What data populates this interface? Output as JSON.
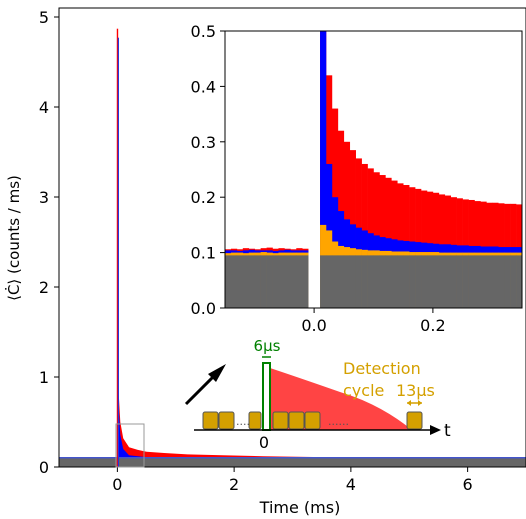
{
  "chart_data": [
    {
      "id": "main",
      "type": "area",
      "xlabel": "Time (ms)",
      "ylabel": "⟨Ċ⟩ (counts / ms)",
      "xlim": [
        -1.0,
        7.0
      ],
      "ylim": [
        0,
        5.1
      ],
      "xticks": [
        0,
        2,
        4,
        6
      ],
      "xtick_labels": [
        "0",
        "2",
        "4",
        "6"
      ],
      "yticks": [
        0,
        1,
        2,
        3,
        4,
        5
      ],
      "ytick_labels": [
        "0",
        "1",
        "2",
        "3",
        "4",
        "5"
      ],
      "background_level": 0.1,
      "spike": {
        "x": 0.0,
        "peak_red": 4.87,
        "peak_blue": 4.77
      },
      "decay_samples": {
        "x": [
          0.02,
          0.05,
          0.1,
          0.2,
          0.35,
          0.5,
          0.8,
          1.2,
          1.8,
          2.5,
          3.5,
          4.5,
          5.5,
          7.0
        ],
        "red": [
          0.85,
          0.5,
          0.32,
          0.22,
          0.19,
          0.17,
          0.155,
          0.14,
          0.13,
          0.12,
          0.11,
          0.105,
          0.1,
          0.1
        ],
        "blue": [
          0.7,
          0.36,
          0.2,
          0.13,
          0.12,
          0.11,
          0.11,
          0.105,
          0.1,
          0.1,
          0.1,
          0.1,
          0.1,
          0.1
        ]
      },
      "grid": false
    },
    {
      "id": "inset",
      "type": "bar",
      "xlim": [
        -0.15,
        0.35
      ],
      "ylim": [
        0,
        0.5
      ],
      "xticks": [
        0.0,
        0.2
      ],
      "xtick_labels": [
        "0.0",
        "0.2"
      ],
      "yticks": [
        0.0,
        0.1,
        0.2,
        0.3,
        0.4,
        0.5
      ],
      "ytick_labels": [
        "0.0",
        "0.1",
        "0.2",
        "0.3",
        "0.4",
        "0.5"
      ],
      "bin_width": 0.01,
      "bins_start": -0.15,
      "series": [
        {
          "color": "#666666",
          "values": [
            0.095,
            0.095,
            0.095,
            0.095,
            0.095,
            0.095,
            0.095,
            0.095,
            0.095,
            0.095,
            0.095,
            0.095,
            0.095,
            0.095,
            0.0,
            0.0,
            0.095,
            0.095,
            0.095,
            0.095,
            0.095,
            0.095,
            0.095,
            0.095,
            0.095,
            0.095,
            0.095,
            0.095,
            0.095,
            0.095,
            0.095,
            0.095,
            0.095,
            0.095,
            0.095,
            0.095,
            0.095,
            0.095,
            0.095,
            0.095,
            0.095,
            0.095,
            0.095,
            0.095,
            0.095,
            0.095,
            0.095,
            0.095,
            0.095,
            0.095
          ]
        },
        {
          "color": "#ffa500",
          "values": [
            0.099,
            0.1,
            0.1,
            0.099,
            0.1,
            0.1,
            0.101,
            0.1,
            0.099,
            0.1,
            0.1,
            0.1,
            0.1,
            0.1,
            0.0,
            0.0,
            0.15,
            0.14,
            0.12,
            0.112,
            0.11,
            0.108,
            0.106,
            0.105,
            0.104,
            0.104,
            0.103,
            0.103,
            0.102,
            0.102,
            0.102,
            0.101,
            0.101,
            0.101,
            0.101,
            0.101,
            0.1,
            0.1,
            0.1,
            0.1,
            0.1,
            0.1,
            0.1,
            0.1,
            0.1,
            0.1,
            0.1,
            0.1,
            0.1,
            0.1
          ]
        },
        {
          "color": "#0000ff",
          "values": [
            0.104,
            0.104,
            0.103,
            0.104,
            0.105,
            0.104,
            0.104,
            0.104,
            0.103,
            0.104,
            0.105,
            0.104,
            0.104,
            0.104,
            0.0,
            0.0,
            0.5,
            0.26,
            0.2,
            0.175,
            0.16,
            0.151,
            0.145,
            0.14,
            0.135,
            0.131,
            0.128,
            0.126,
            0.124,
            0.122,
            0.121,
            0.12,
            0.119,
            0.118,
            0.117,
            0.116,
            0.115,
            0.115,
            0.114,
            0.113,
            0.113,
            0.112,
            0.112,
            0.111,
            0.111,
            0.111,
            0.11,
            0.11,
            0.11,
            0.11
          ]
        },
        {
          "color": "#ff0000",
          "values": [
            0.106,
            0.107,
            0.106,
            0.108,
            0.107,
            0.106,
            0.108,
            0.109,
            0.107,
            0.108,
            0.107,
            0.106,
            0.108,
            0.107,
            0.0,
            0.0,
            0.5,
            0.42,
            0.36,
            0.32,
            0.3,
            0.285,
            0.27,
            0.26,
            0.252,
            0.245,
            0.24,
            0.235,
            0.23,
            0.225,
            0.222,
            0.218,
            0.215,
            0.212,
            0.21,
            0.208,
            0.205,
            0.203,
            0.2,
            0.198,
            0.196,
            0.195,
            0.193,
            0.192,
            0.19,
            0.19,
            0.189,
            0.188,
            0.188,
            0.187
          ]
        }
      ],
      "grid": false
    }
  ],
  "diagram": {
    "pulse_label": "6μs",
    "detection_label_line1": "Detection",
    "detection_label_line2": "cycle",
    "cycle_width_label": "13μs",
    "axis_zero": "0",
    "axis_t": "t",
    "colors": {
      "pulse": "#008000",
      "detection": "#d4a000",
      "decay": "#ff3030",
      "frame": "#555555"
    }
  }
}
